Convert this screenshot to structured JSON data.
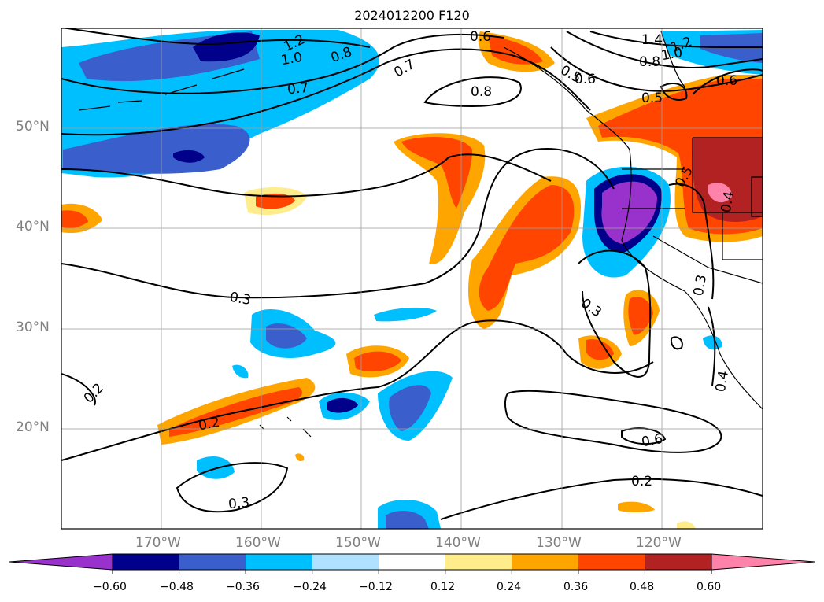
{
  "title": "2024012200 F120",
  "axes": {
    "lat_labels": [
      "50°N",
      "40°N",
      "30°N",
      "20°N"
    ],
    "lon_labels": [
      "170°W",
      "160°W",
      "150°W",
      "140°W",
      "130°W",
      "120°W"
    ]
  },
  "colorbar": {
    "ticks": [
      "−0.60",
      "−0.48",
      "−0.36",
      "−0.24",
      "−0.12",
      "0.12",
      "0.24",
      "0.36",
      "0.48",
      "0.60"
    ],
    "colors": [
      "#9932cc",
      "#00008b",
      "#3a5fcd",
      "#00bfff",
      "#b0e2ff",
      "#ffffff",
      "#ffec8b",
      "#ffa500",
      "#ff4500",
      "#b22222",
      "#ff82ab"
    ]
  },
  "contour_labels": [
    "1.4",
    "1.2",
    "1.2",
    "1.0",
    "1.0",
    "0.8",
    "0.8",
    "0.8",
    "0.7",
    "0.7",
    "0.6",
    "0.6",
    "0.6",
    "0.5",
    "0.5",
    "0.5",
    "0.4",
    "0.4",
    "0.3",
    "0.3",
    "0.3",
    "0.3",
    "0.2",
    "0.2",
    "0.2",
    "0.6"
  ]
}
